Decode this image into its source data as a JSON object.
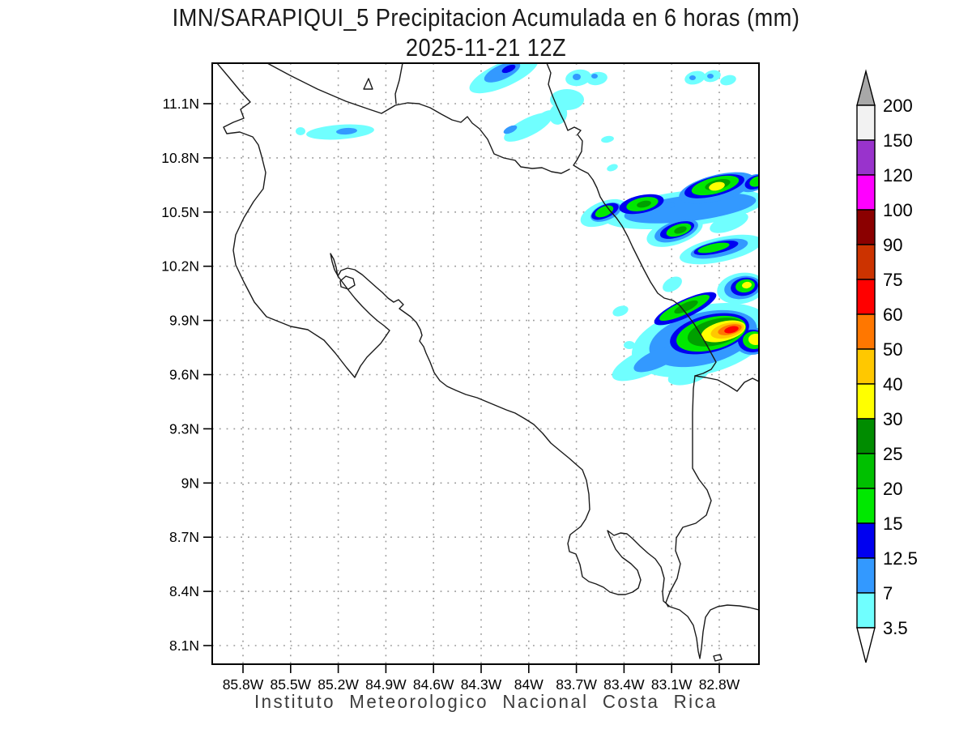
{
  "title": {
    "line1": "IMN/SARAPIQUI_5 Precipitacion Acumulada en 6 horas (mm)",
    "line2": "2025-11-21 12Z"
  },
  "footer": "Instituto Meteorologico Nacional Costa Rica",
  "axes": {
    "lat_ticks": [
      "11.1N",
      "10.8N",
      "10.5N",
      "10.2N",
      "9.9N",
      "9.6N",
      "9.3N",
      "9N",
      "8.7N",
      "8.4N",
      "8.1N"
    ],
    "lon_ticks": [
      "85.8W",
      "85.5W",
      "85.2W",
      "84.9W",
      "84.6W",
      "84.3W",
      "84W",
      "83.7W",
      "83.4W",
      "83.1W",
      "82.8W"
    ]
  },
  "colorbar": {
    "labels_top_to_bottom": [
      "200",
      "150",
      "120",
      "100",
      "90",
      "75",
      "60",
      "50",
      "40",
      "30",
      "25",
      "20",
      "15",
      "12.5",
      "7",
      "3.5"
    ],
    "segment_colors_top_to_bottom": [
      "#f2f2f2",
      "#9933cc",
      "#ff00ff",
      "#8b0000",
      "#cc3300",
      "#ff0000",
      "#ff7700",
      "#ffc800",
      "#ffff00",
      "#008c00",
      "#00c000",
      "#00e800",
      "#0000f0",
      "#3399ff",
      "#70ffff"
    ],
    "arrow_top_color": "#a8a8a8",
    "arrow_bottom_color": "#ffffff"
  },
  "palette": {
    "l1": "#70ffff",
    "l2": "#3399ff",
    "l3": "#0000f0",
    "l4": "#00e800",
    "l5": "#00a000",
    "l6": "#ffff00",
    "l7": "#ffc800",
    "l8": "#ff7700",
    "l9": "#ff0000"
  },
  "precip_blobs": [
    [
      371,
      162,
      6,
      5,
      0,
      "l1"
    ],
    [
      420,
      163,
      42,
      9,
      -4,
      "l1"
    ],
    [
      622,
      92,
      46,
      15,
      -24,
      "l1"
    ],
    [
      714,
      96,
      16,
      10,
      -10,
      "l1"
    ],
    [
      737,
      97,
      13,
      8,
      -10,
      "l1"
    ],
    [
      700,
      123,
      21,
      13,
      0,
      "l1"
    ],
    [
      689,
      141,
      11,
      13,
      15,
      "l1"
    ],
    [
      672,
      146,
      14,
      7,
      -35,
      "l1"
    ],
    [
      652,
      157,
      33,
      11,
      -27,
      "l1"
    ],
    [
      750,
      172,
      8,
      4,
      -10,
      "l1"
    ],
    [
      756,
      207,
      7,
      4,
      -20,
      "l1"
    ],
    [
      858,
      96,
      13,
      8,
      -15,
      "l1"
    ],
    [
      879,
      94,
      11,
      7,
      -15,
      "l1"
    ],
    [
      899,
      99,
      10,
      6,
      -15,
      "l1"
    ],
    [
      845,
      258,
      100,
      22,
      -7,
      "l1"
    ],
    [
      745,
      263,
      30,
      14,
      -22,
      "l1"
    ],
    [
      900,
      275,
      25,
      10,
      -20,
      "l1"
    ],
    [
      833,
      286,
      36,
      16,
      -18,
      "l1"
    ],
    [
      890,
      308,
      52,
      15,
      -12,
      "l1"
    ],
    [
      830,
      351,
      13,
      8,
      -30,
      "l1"
    ],
    [
      915,
      356,
      30,
      19,
      -10,
      "l1"
    ],
    [
      766,
      384,
      10,
      6,
      -20,
      "l1"
    ],
    [
      866,
      420,
      88,
      42,
      -14,
      "l1"
    ],
    [
      800,
      446,
      48,
      16,
      -24,
      "l1"
    ],
    [
      777,
      426,
      7,
      5,
      0,
      "l1"
    ],
    [
      795,
      429,
      6,
      4,
      0,
      "l1"
    ],
    [
      850,
      463,
      26,
      11,
      -15,
      "l1"
    ],
    [
      428,
      162,
      13,
      4,
      -4,
      "l2"
    ],
    [
      620,
      89,
      24,
      9,
      -24,
      "l2"
    ],
    [
      712,
      95,
      5,
      4,
      0,
      "l2"
    ],
    [
      734,
      94,
      4,
      3,
      0,
      "l2"
    ],
    [
      630,
      160,
      9,
      4,
      -25,
      "l2"
    ],
    [
      855,
      96,
      4,
      3,
      0,
      "l2"
    ],
    [
      877,
      94,
      4,
      3,
      0,
      "l2"
    ],
    [
      852,
      257,
      82,
      16,
      -7,
      "l2"
    ],
    [
      748,
      262,
      20,
      10,
      -22,
      "l2"
    ],
    [
      885,
      232,
      48,
      16,
      -14,
      "l2"
    ],
    [
      826,
      253,
      7,
      4,
      0,
      "l2"
    ],
    [
      930,
      226,
      18,
      10,
      -20,
      "l2"
    ],
    [
      835,
      285,
      28,
      12,
      -18,
      "l2"
    ],
    [
      888,
      307,
      36,
      10,
      -12,
      "l2"
    ],
    [
      917,
      355,
      23,
      14,
      -10,
      "l2"
    ],
    [
      868,
      418,
      68,
      32,
      -14,
      "l2"
    ],
    [
      812,
      443,
      32,
      11,
      -24,
      "l2"
    ],
    [
      928,
      421,
      22,
      17,
      0,
      "l2"
    ],
    [
      628,
      85,
      9,
      4,
      -24,
      "l3"
    ],
    [
      882,
      230,
      38,
      12,
      -14,
      "l3"
    ],
    [
      933,
      225,
      14,
      8,
      -20,
      "l3"
    ],
    [
      747,
      261,
      18,
      8,
      -24,
      "l3"
    ],
    [
      792,
      252,
      28,
      11,
      -12,
      "l3"
    ],
    [
      836,
      284,
      22,
      9,
      -18,
      "l3"
    ],
    [
      884,
      306,
      28,
      7,
      -12,
      "l3"
    ],
    [
      919,
      354,
      17,
      11,
      -10,
      "l3"
    ],
    [
      846,
      381,
      42,
      11,
      -25,
      "l3"
    ],
    [
      876,
      412,
      50,
      23,
      -14,
      "l3"
    ],
    [
      929,
      421,
      18,
      14,
      0,
      "l3"
    ],
    [
      883,
      229,
      30,
      10,
      -14,
      "l4"
    ],
    [
      935,
      224,
      10,
      6,
      -20,
      "l4"
    ],
    [
      746,
      261,
      12,
      6,
      -24,
      "l4"
    ],
    [
      793,
      252,
      20,
      8,
      -12,
      "l4"
    ],
    [
      838,
      284,
      16,
      7,
      -18,
      "l4"
    ],
    [
      881,
      306,
      20,
      5,
      -12,
      "l4"
    ],
    [
      920,
      353,
      12,
      8,
      -10,
      "l4"
    ],
    [
      845,
      380,
      34,
      8,
      -25,
      "l4"
    ],
    [
      878,
      412,
      44,
      20,
      -14,
      "l4"
    ],
    [
      931,
      420,
      14,
      11,
      0,
      "l4"
    ],
    [
      886,
      228,
      16,
      6,
      -14,
      "l5"
    ],
    [
      795,
      252,
      9,
      4,
      -12,
      "l5"
    ],
    [
      840,
      284,
      8,
      4,
      -18,
      "l5"
    ],
    [
      847,
      379,
      16,
      5,
      -25,
      "l5"
    ],
    [
      884,
      410,
      36,
      16,
      -14,
      "l5"
    ],
    [
      885,
      230,
      10,
      5,
      -14,
      "l6"
    ],
    [
      922,
      352,
      6,
      4,
      -10,
      "l6"
    ],
    [
      893,
      409,
      28,
      12,
      -14,
      "l6"
    ],
    [
      933,
      419,
      9,
      7,
      0,
      "l6"
    ],
    [
      898,
      408,
      21,
      9,
      -14,
      "l7"
    ],
    [
      901,
      407,
      15,
      6,
      -14,
      "l8"
    ],
    [
      903,
      407,
      9,
      4,
      -14,
      "l9"
    ]
  ],
  "coastline_paths": [
    "M 268 78 L 284 97 L 298 114 L 309 126 L 297 135 L 301 146 L 288 151 L 276 157 L 280 165 L 296 163 L 312 169 L 319 179 L 323 193 L 328 213 L 325 233 L 313 249 L 301 269 L 291 290 L 288 309 L 291 327 L 301 348 L 314 373 L 329 391 L 344 397 L 359 403 L 380 407 L 400 420 L 414 436 L 428 454 L 438 466 L 445 452 L 453 441 L 462 432 L 470 424 L 477 414 L 481 408 L 474 402 L 466 396 L 457 388 L 447 378 L 438 368 L 430 358 L 424 350 L 418 342 L 413 333 L 410 323 L 408 313 L 412 320 L 415 330 L 417 341 L 421 334 L 429 331 L 438 333 L 447 339 L 456 347 L 465 355 L 472 361 L 479 368 L 486 373 L 492 370 L 498 376 L 493 381 L 500 386 L 507 391 L 514 398 L 519 407 L 521 414 L 518 421 L 523 428 L 526 436 L 531 447 L 536 460 L 543 470 L 552 477 L 563 482 L 575 487 L 589 491 L 601 496 L 613 501 L 625 506 L 636 510 L 648 517 L 659 524 L 670 535 L 680 547 L 692 557 L 703 566 L 712 574 L 719 580 L 724 593 L 727 610 L 728 629 L 723 641 L 717 650 L 704 660 L 701 671 L 703 681 L 711 684 L 716 697 L 719 712 L 727 718 L 736 721 L 745 725 L 753 731 L 763 734 L 772 734 L 781 731 L 788 726 L 791 716 L 787 704 L 779 696 L 768 688 L 760 678 L 753 663 L 750 655 L 758 661 L 766 658 L 774 659 L 781 665 L 790 674 L 800 683 L 809 690 L 816 700 L 820 714 L 818 731 L 819 742 L 827 749 L 839 753 L 849 761 L 856 772 L 860 788 L 862 804 L 864 813 L 866 800 L 868 780 L 871 762 L 877 753 L 886 749 L 898 747 L 913 748 L 925 750 L 937 753",
    "M 675 78 L 680 90 L 677 104 L 682 118 L 687 130 L 692 141 L 697 151 L 701 161 L 709 157 L 717 161 L 713 166 L 719 174 L 718 187 L 712 198 L 708 204 L 716 209 L 726 214 L 732 222 L 737 232 L 741 243 L 746 251 L 753 260 L 761 269 L 768 279 L 775 292 L 781 305 L 788 319 L 795 333 L 803 348 L 812 362 L 820 368 L 831 371 L 839 377 L 848 388 L 857 400 L 865 413 L 872 425 L 878 436 L 884 447 L 878 456 L 868 461 L 858 464 L 871 466 L 886 469 L 899 476 L 910 483 L 919 472 L 929 467 L 937 471",
    "M 330 78 L 358 93 L 392 110 L 427 125 L 456 135 L 471 140 L 488 130 L 503 127 L 517 128 L 531 133 L 545 141 L 558 148 L 569 151 L 577 144 L 583 152 L 592 159 L 602 172 L 610 190 L 622 195 L 636 198 L 643 206 L 657 208 L 669 207 L 681 212 L 693 214 L 703 209",
    "M 497 78 L 493 99 L 488 116 L 489 128",
    "M 858 464 L 856 480 L 855 510 L 855 545 L 855 578 L 863 592 L 873 605 L 878 618 L 872 636 L 859 646 L 843 651 L 835 664 L 834 680 L 840 696 L 836 714 L 827 731 L 822 744 L 825 749",
    "M 449 110 L 455 97 L 460 110 Z",
    "M 420 347 L 427 341 L 436 344 L 438 352 L 430 357 L 421 354 Z",
    "M 881 810 L 889 808 L 891 814 L 883 816 Z"
  ]
}
